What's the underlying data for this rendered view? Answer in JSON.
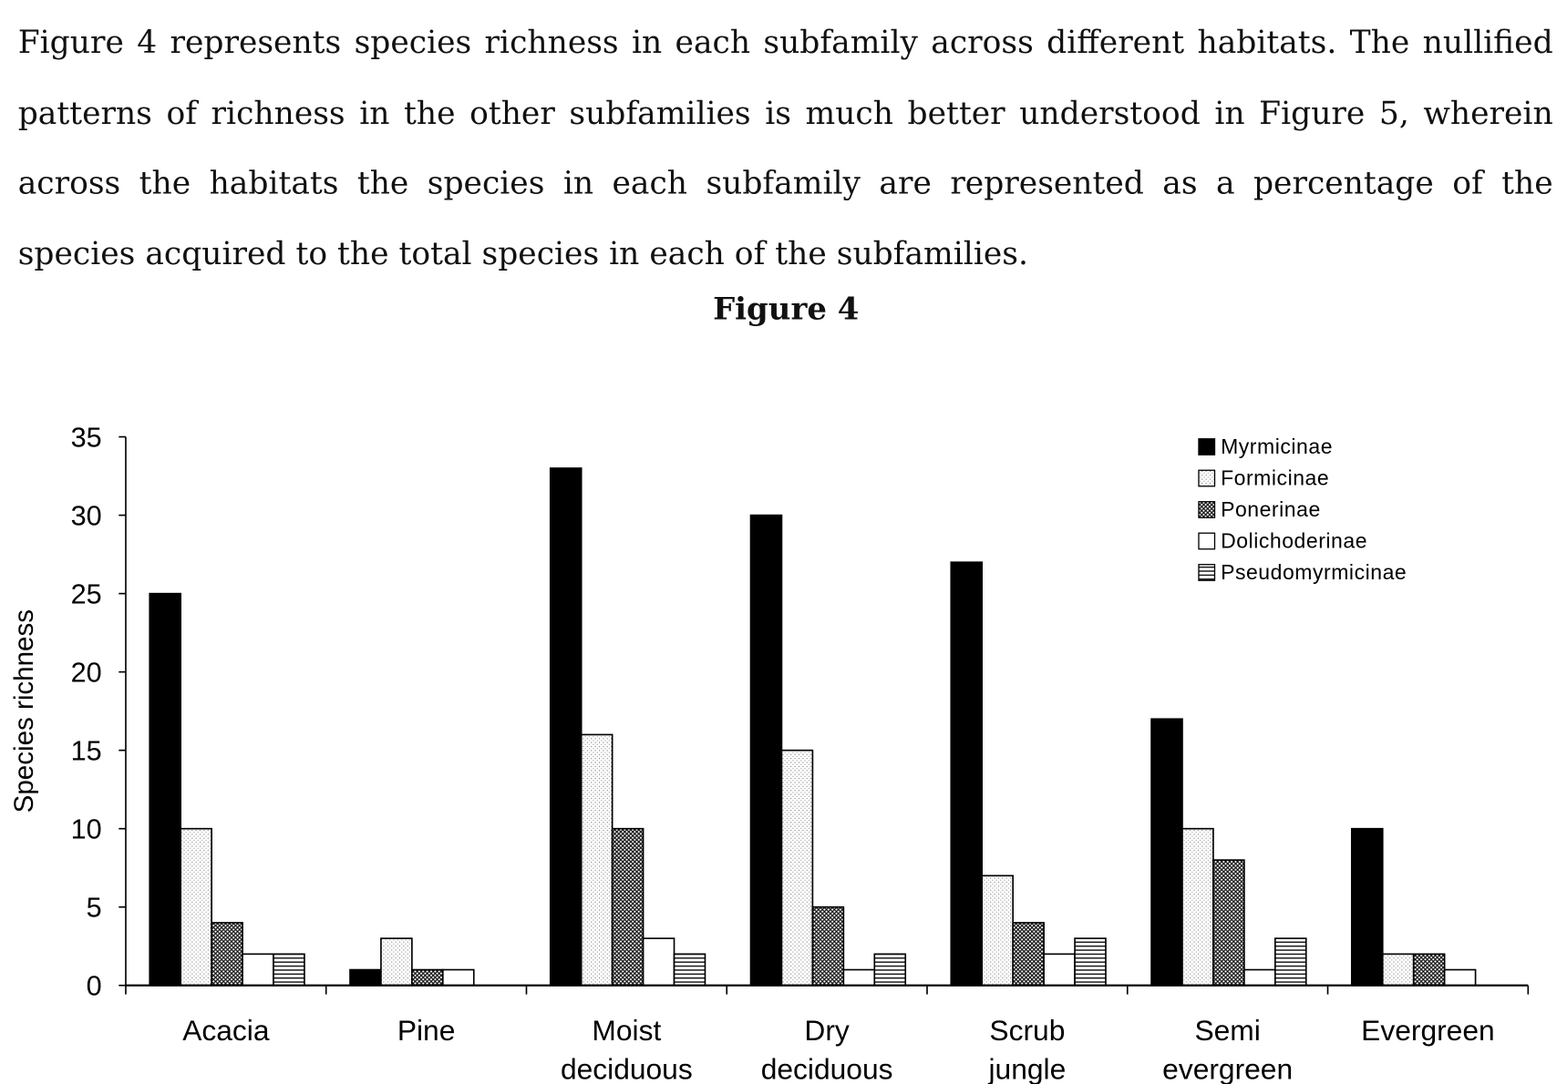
{
  "paragraph": "Figure 4 represents species richness in each subfamily across different habitats. The nullified patterns of richness in the other subfamilies is much better understood in Figure 5, wherein across the habitats the species in each subfamily are represented as a percentage of the species acquired to the total species in each of the subfamilies.",
  "figure_title": "Figure 4",
  "chart_data": {
    "type": "bar",
    "title": "",
    "xlabel": "",
    "ylabel": "Species richness",
    "ylim": [
      0,
      35
    ],
    "yticks": [
      0,
      5,
      10,
      15,
      20,
      25,
      30,
      35
    ],
    "grid": false,
    "legend_position": "top-right",
    "categories": [
      [
        "Acacia"
      ],
      [
        "Pine"
      ],
      [
        "Moist",
        "deciduous"
      ],
      [
        "Dry",
        "deciduous"
      ],
      [
        "Scrub",
        "jungle"
      ],
      [
        "Semi",
        "evergreen"
      ],
      [
        "Evergreen"
      ]
    ],
    "series": [
      {
        "name": "Myrmicinae",
        "pattern": "solid-black",
        "values": [
          25,
          1,
          33,
          30,
          27,
          17,
          10
        ]
      },
      {
        "name": "Formicinae",
        "pattern": "light-dots",
        "values": [
          10,
          3,
          16,
          15,
          7,
          10,
          2
        ]
      },
      {
        "name": "Ponerinae",
        "pattern": "dense-crosshatch",
        "values": [
          4,
          1,
          10,
          5,
          4,
          8,
          2
        ]
      },
      {
        "name": "Dolichoderinae",
        "pattern": "white",
        "values": [
          2,
          1,
          3,
          1,
          2,
          1,
          1
        ]
      },
      {
        "name": "Pseudomyrmicinae",
        "pattern": "horizontal-lines",
        "values": [
          2,
          0,
          2,
          2,
          3,
          3,
          0
        ]
      }
    ]
  }
}
